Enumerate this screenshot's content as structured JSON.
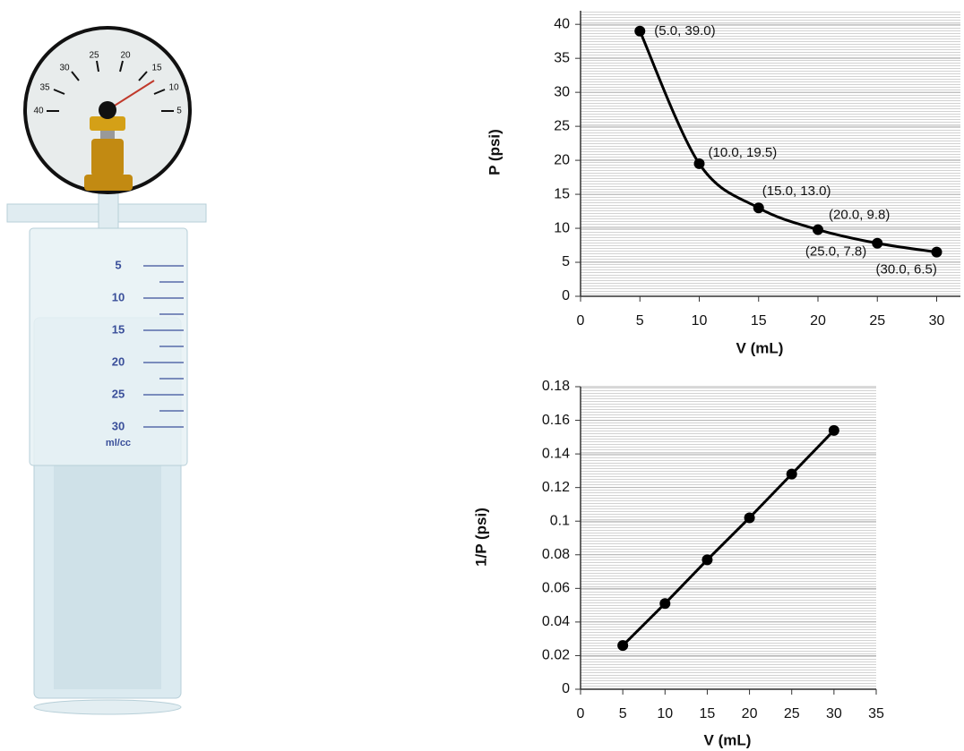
{
  "illustration": {
    "gauge_labels": [
      40,
      35,
      30,
      25,
      20,
      15,
      10,
      5
    ],
    "syringe_scale": [
      5,
      10,
      15,
      20,
      25,
      30
    ],
    "syringe_unit": "ml/cc"
  },
  "chart_data": [
    {
      "type": "line",
      "smooth": true,
      "color": "#000000",
      "grid": true,
      "x_label": "V (mL)",
      "y_label": "P (psi)",
      "x": [
        5,
        10,
        15,
        20,
        25,
        30
      ],
      "values": [
        39.0,
        19.5,
        13.0,
        9.8,
        7.8,
        6.5
      ],
      "value_labels": [
        "(5.0, 39.0)",
        "(10.0, 19.5)",
        "(15.0, 13.0)",
        "(20.0, 9.8)",
        "(25.0, 7.8)",
        "(30.0, 6.5)"
      ],
      "xlim": [
        0,
        32
      ],
      "ylim": [
        0,
        42
      ],
      "xticks": [
        0,
        5,
        10,
        15,
        20,
        25,
        30
      ],
      "yticks": [
        0,
        5,
        10,
        15,
        20,
        25,
        30,
        35,
        40
      ]
    },
    {
      "type": "line",
      "smooth": false,
      "color": "#000000",
      "grid": true,
      "x_label": "V (mL)",
      "y_label": "1/P (psi)",
      "x": [
        5,
        10,
        15,
        20,
        25,
        30
      ],
      "values": [
        0.026,
        0.051,
        0.077,
        0.102,
        0.128,
        0.154
      ],
      "xlim": [
        0,
        35
      ],
      "ylim": [
        0,
        0.18
      ],
      "xticks": [
        0,
        5,
        10,
        15,
        20,
        25,
        30,
        35
      ],
      "yticks": [
        0,
        0.02,
        0.04,
        0.06,
        0.08,
        0.1,
        0.12,
        0.14,
        0.16,
        0.18
      ]
    }
  ]
}
